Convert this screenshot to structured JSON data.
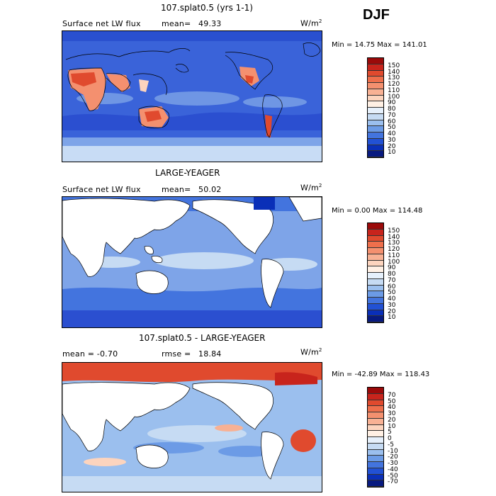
{
  "season": "DJF",
  "panels": [
    {
      "title": "107.splat0.5 (yrs 1-1)",
      "left_label": "Surface net LW flux",
      "mean_label": "mean=",
      "mean_value": "49.33",
      "units": "W/m",
      "units_sup": "2",
      "stats": "Min =  14.75 Max = 141.01",
      "colorbar_labels": [
        "150",
        "140",
        "130",
        "120",
        "110",
        "100",
        "90",
        "80",
        "70",
        "60",
        "50",
        "40",
        "30",
        "20",
        "10"
      ],
      "colorbar_colors": [
        "#9b0a0a",
        "#c8241c",
        "#e04a2e",
        "#ee6f4c",
        "#f4906f",
        "#f8b194",
        "#fcd4be",
        "#fff0e4",
        "#e6f0fb",
        "#c6dbf3",
        "#9bbfee",
        "#6c9be6",
        "#4374de",
        "#2251d4",
        "#0a2fb8",
        "#081a80"
      ]
    },
    {
      "title": "LARGE-YEAGER",
      "left_label": "Surface net LW flux",
      "mean_label": "mean=",
      "mean_value": "50.02",
      "units": "W/m",
      "units_sup": "2",
      "stats": "Min =   0.00 Max = 114.48",
      "colorbar_labels": [
        "150",
        "140",
        "130",
        "120",
        "110",
        "100",
        "90",
        "80",
        "70",
        "60",
        "50",
        "40",
        "30",
        "20",
        "10"
      ],
      "colorbar_colors": [
        "#9b0a0a",
        "#c8241c",
        "#e04a2e",
        "#ee6f4c",
        "#f4906f",
        "#f8b194",
        "#fcd4be",
        "#fff0e4",
        "#e6f0fb",
        "#c6dbf3",
        "#9bbfee",
        "#6c9be6",
        "#4374de",
        "#2251d4",
        "#0a2fb8",
        "#081a80"
      ]
    },
    {
      "title": "107.splat0.5 - LARGE-YEAGER",
      "left_label": "mean =  -0.70",
      "mean_label": "rmse =",
      "mean_value": "18.84",
      "units": "W/m",
      "units_sup": "2",
      "stats": "Min = -42.89 Max = 118.43",
      "colorbar_labels": [
        "70",
        "50",
        "40",
        "30",
        "20",
        "10",
        "5",
        "0",
        "-5",
        "-10",
        "-20",
        "-30",
        "-40",
        "-50",
        "-70"
      ],
      "colorbar_colors": [
        "#9b0a0a",
        "#c8241c",
        "#e04a2e",
        "#ee6f4c",
        "#f4906f",
        "#f8b194",
        "#fcd4be",
        "#fff0e4",
        "#e6f0fb",
        "#c6dbf3",
        "#9bbfee",
        "#6c9be6",
        "#4374de",
        "#2251d4",
        "#0a2fb8",
        "#081a80"
      ]
    }
  ]
}
